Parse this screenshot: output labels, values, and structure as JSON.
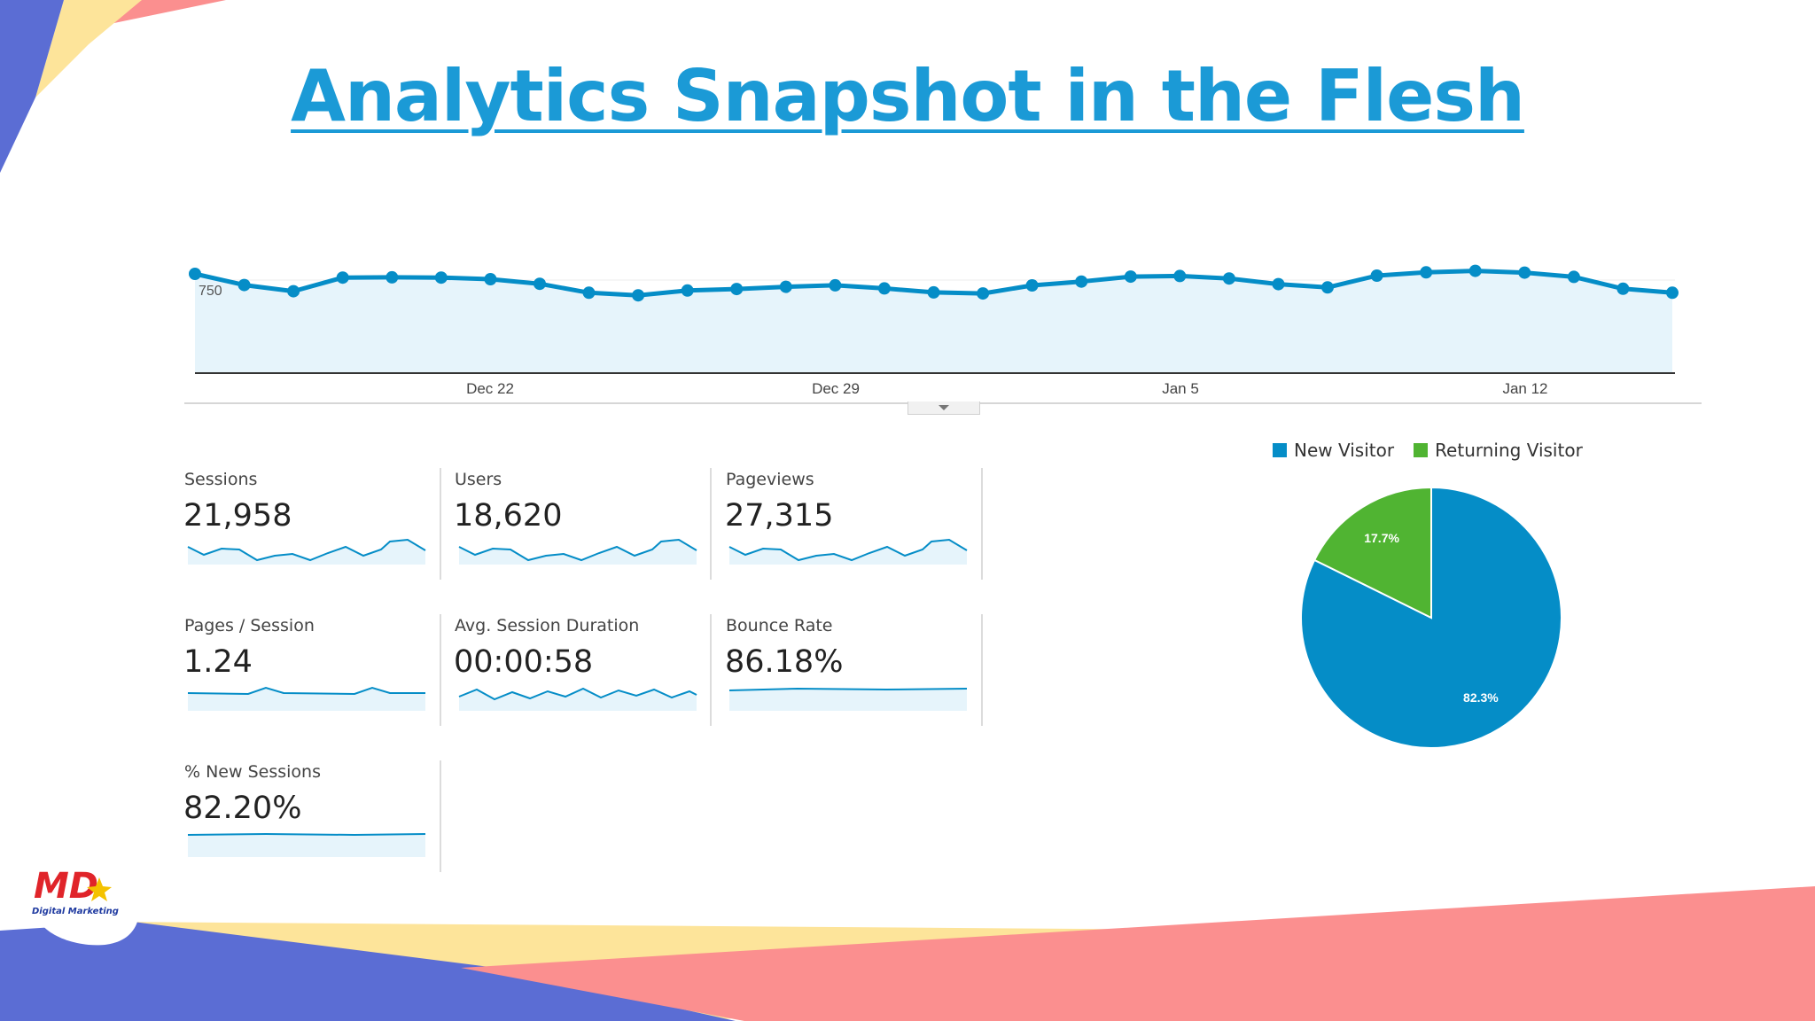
{
  "slide": {
    "title": "Analytics Snapshot in the Flesh"
  },
  "colors": {
    "title": "#1b9ad6",
    "line": "#058dc7",
    "area_fill": "#e6f4fb",
    "new_visitor": "#058dc7",
    "returning_visitor": "#50b432",
    "decor_blue": "#5b6dd4",
    "decor_yellow": "#fde49a",
    "decor_coral": "#fb8f8f"
  },
  "sessions_chart": {
    "y_tick_label": "750",
    "date_labels": [
      "Dec 22",
      "Dec 29",
      "Jan 5",
      "Jan 12"
    ]
  },
  "metrics": [
    {
      "label": "Sessions",
      "value": "21,958"
    },
    {
      "label": "Users",
      "value": "18,620"
    },
    {
      "label": "Pageviews",
      "value": "27,315"
    },
    {
      "label": "Pages / Session",
      "value": "1.24"
    },
    {
      "label": "Avg. Session Duration",
      "value": "00:00:58"
    },
    {
      "label": "Bounce Rate",
      "value": "86.18%"
    },
    {
      "label": "% New Sessions",
      "value": "82.20%"
    }
  ],
  "visitor_pie": {
    "legend": [
      "New Visitor",
      "Returning Visitor"
    ],
    "slices": [
      {
        "name": "New Visitor",
        "value": 82.3,
        "label": "82.3%"
      },
      {
        "name": "Returning Visitor",
        "value": 17.7,
        "label": "17.7%"
      }
    ]
  },
  "logo": {
    "monogram": "MD",
    "tagline": "Digital Marketing"
  },
  "chart_data": [
    {
      "type": "line",
      "y_tick_label": "750",
      "x_tick_labels": [
        "Dec 22",
        "Dec 29",
        "Jan 5",
        "Jan 12"
      ],
      "values": [
        800,
        710,
        660,
        770,
        772,
        770,
        757,
        720,
        648,
        627,
        666,
        678,
        696,
        708,
        683,
        651,
        642,
        707,
        738,
        778,
        783,
        763,
        717,
        691,
        786,
        812,
        824,
        810,
        776,
        680,
        648
      ],
      "grid": true,
      "area_fill": true
    },
    {
      "type": "pie",
      "legend_position": "top",
      "slices": [
        {
          "name": "New Visitor",
          "value": 82.3,
          "label": "82.3%"
        },
        {
          "name": "Returning Visitor",
          "value": 17.7,
          "label": "17.7%"
        }
      ]
    }
  ]
}
